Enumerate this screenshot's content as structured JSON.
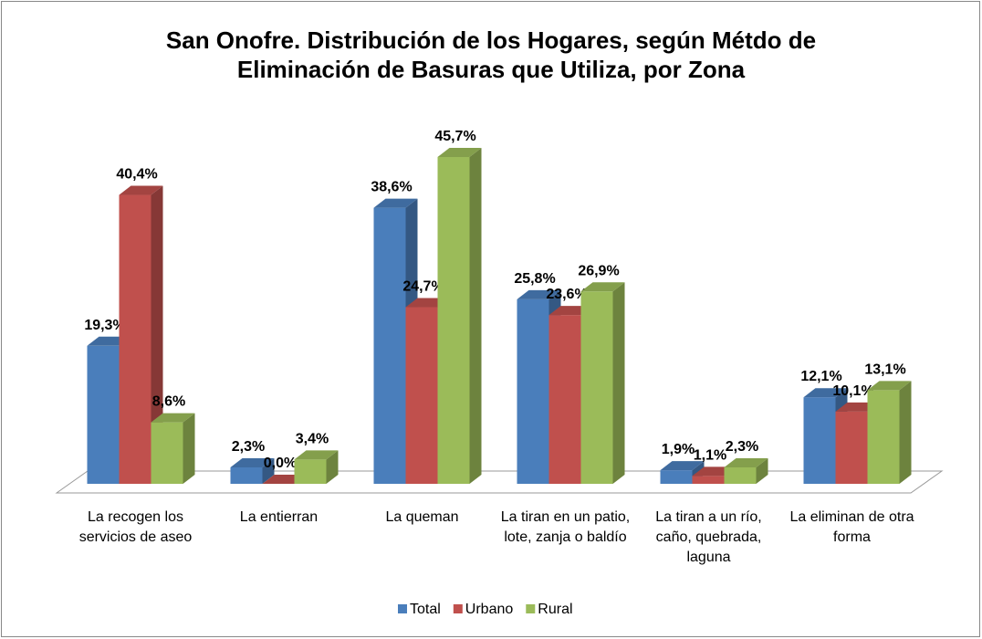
{
  "chart_data": {
    "type": "bar3d",
    "title": "San Onofre. Distribución de los Hogares, según Métdo de Eliminación de Basuras que Utiliza, por Zona",
    "categories": [
      "La recogen los servicios de aseo",
      "La entierran",
      "La queman",
      "La tiran en un patio, lote, zanja o baldío",
      "La tiran a un río, caño, quebrada, laguna",
      "La eliminan de otra forma"
    ],
    "series": [
      {
        "name": "Total",
        "color": "#4a7ebb",
        "values": [
          19.3,
          2.3,
          38.6,
          25.8,
          1.9,
          12.1
        ],
        "value_labels": [
          "19,3%",
          "2,3%",
          "38,6%",
          "25,8%",
          "1,9%",
          "12,1%"
        ]
      },
      {
        "name": "Urbano",
        "color": "#c0504d",
        "values": [
          40.4,
          0.0,
          24.7,
          23.6,
          1.1,
          10.1
        ],
        "value_labels": [
          "40,4%",
          "0,0%",
          "24,7%",
          "23,6%",
          "1,1%",
          "10,1%"
        ]
      },
      {
        "name": "Rural",
        "color": "#9bbb59",
        "values": [
          8.6,
          3.4,
          45.7,
          26.9,
          2.3,
          13.1
        ],
        "value_labels": [
          "8,6%",
          "3,4%",
          "45,7%",
          "26,9%",
          "2,3%",
          "13,1%"
        ]
      }
    ],
    "legend": "bottom"
  }
}
